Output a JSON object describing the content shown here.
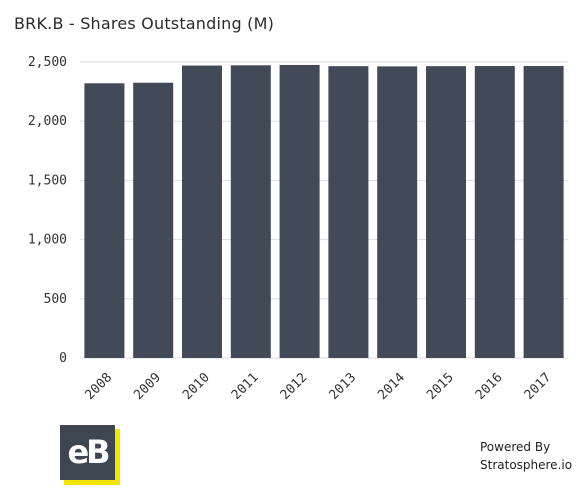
{
  "chart_data": {
    "type": "bar",
    "title": "BRK.B - Shares Outstanding (M)",
    "categories": [
      "2008",
      "2009",
      "2010",
      "2011",
      "2012",
      "2013",
      "2014",
      "2015",
      "2016",
      "2017"
    ],
    "values": [
      2320,
      2325,
      2470,
      2472,
      2475,
      2465,
      2463,
      2465,
      2466,
      2466
    ],
    "ylim": [
      0,
      2500
    ],
    "yticks": [
      0,
      500,
      1000,
      1500,
      2000,
      2500
    ],
    "ytick_labels": [
      "0",
      "500",
      "1,000",
      "1,500",
      "2,000",
      "2,500"
    ],
    "xlabel": "",
    "ylabel": "",
    "grid": true,
    "bar_color": "#414a56",
    "grid_color": "#dddddd"
  },
  "footer": {
    "logo_text": "eB",
    "powered_line1": "Powered By",
    "powered_line2": "Stratosphere.io",
    "logo_color": "#3e4652",
    "logo_accent": "#f2e600"
  }
}
